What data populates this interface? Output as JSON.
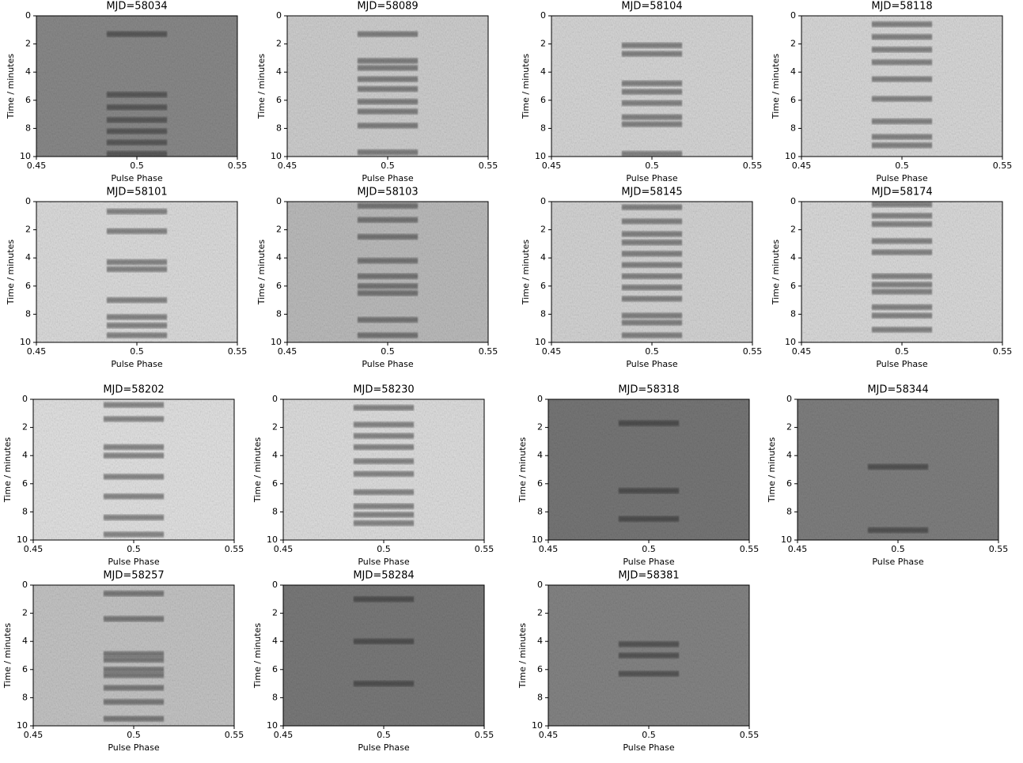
{
  "chart_data": [
    {
      "type": "heatmap",
      "title": "MJD=58034",
      "xlabel": "Pulse Phase",
      "ylabel": "Time / minutes",
      "xlim": [
        0.45,
        0.55
      ],
      "xticks": [
        0.45,
        0.5,
        0.55
      ],
      "ylim": [
        10,
        0
      ],
      "yticks": [
        0,
        2,
        4,
        6,
        8,
        10
      ],
      "background": "#8a8a8a",
      "pulse_window": [
        0.485,
        0.515
      ],
      "pulses": [
        1.3,
        5.6,
        6.5,
        7.4,
        8.2,
        9.0,
        9.8
      ]
    },
    {
      "type": "heatmap",
      "title": "MJD=58089",
      "xlabel": "Pulse Phase",
      "ylabel": "Time / minutes",
      "xlim": [
        0.45,
        0.55
      ],
      "xticks": [
        0.45,
        0.5,
        0.55
      ],
      "ylim": [
        10,
        0
      ],
      "yticks": [
        0,
        2,
        4,
        6,
        8,
        10
      ],
      "background": "#d0d0d0",
      "pulse_window": [
        0.485,
        0.515
      ],
      "pulses": [
        1.3,
        3.2,
        3.7,
        4.5,
        5.2,
        6.1,
        6.8,
        7.8,
        9.7
      ]
    },
    {
      "type": "heatmap",
      "title": "MJD=58104",
      "xlabel": "Pulse Phase",
      "ylabel": "Time / minutes",
      "xlim": [
        0.45,
        0.55
      ],
      "xticks": [
        0.45,
        0.5,
        0.55
      ],
      "ylim": [
        10,
        0
      ],
      "yticks": [
        0,
        2,
        4,
        6,
        8,
        10
      ],
      "background": "#d8d8d8",
      "pulse_window": [
        0.485,
        0.515
      ],
      "pulses": [
        2.1,
        2.7,
        4.8,
        5.4,
        6.2,
        7.2,
        7.7,
        9.8
      ]
    },
    {
      "type": "heatmap",
      "title": "MJD=58118",
      "xlabel": "Pulse Phase",
      "ylabel": "Time / minutes",
      "xlim": [
        0.45,
        0.55
      ],
      "xticks": [
        0.45,
        0.5,
        0.55
      ],
      "ylim": [
        10,
        0
      ],
      "yticks": [
        0,
        2,
        4,
        6,
        8,
        10
      ],
      "background": "#dadada",
      "pulse_window": [
        0.485,
        0.515
      ],
      "pulses": [
        0.6,
        1.5,
        2.4,
        3.3,
        4.5,
        5.9,
        7.5,
        8.6,
        9.2
      ]
    },
    {
      "type": "heatmap",
      "title": "MJD=58101",
      "xlabel": "Pulse Phase",
      "ylabel": "Time / minutes",
      "xlim": [
        0.45,
        0.55
      ],
      "xticks": [
        0.45,
        0.5,
        0.55
      ],
      "ylim": [
        10,
        0
      ],
      "yticks": [
        0,
        2,
        4,
        6,
        8,
        10
      ],
      "background": "#dedede",
      "pulse_window": [
        0.485,
        0.515
      ],
      "pulses": [
        0.7,
        2.1,
        4.3,
        4.8,
        7.0,
        8.2,
        8.8,
        9.5
      ]
    },
    {
      "type": "heatmap",
      "title": "MJD=58103",
      "xlabel": "Pulse Phase",
      "ylabel": "Time / minutes",
      "xlim": [
        0.45,
        0.55
      ],
      "xticks": [
        0.45,
        0.5,
        0.55
      ],
      "ylim": [
        10,
        0
      ],
      "yticks": [
        0,
        2,
        4,
        6,
        8,
        10
      ],
      "background": "#bdbdbd",
      "pulse_window": [
        0.485,
        0.515
      ],
      "pulses": [
        0.3,
        1.3,
        2.5,
        4.2,
        5.3,
        6.0,
        6.5,
        8.4,
        9.5
      ]
    },
    {
      "type": "heatmap",
      "title": "MJD=58145",
      "xlabel": "Pulse Phase",
      "ylabel": "Time / minutes",
      "xlim": [
        0.45,
        0.55
      ],
      "xticks": [
        0.45,
        0.5,
        0.55
      ],
      "ylim": [
        10,
        0
      ],
      "yticks": [
        0,
        2,
        4,
        6,
        8,
        10
      ],
      "background": "#d6d6d6",
      "pulse_window": [
        0.485,
        0.515
      ],
      "pulses": [
        0.4,
        1.4,
        2.3,
        2.9,
        3.7,
        4.5,
        5.3,
        6.1,
        6.9,
        8.1,
        8.6,
        9.5
      ]
    },
    {
      "type": "heatmap",
      "title": "MJD=58174",
      "xlabel": "Pulse Phase",
      "ylabel": "Time / minutes",
      "xlim": [
        0.45,
        0.55
      ],
      "xticks": [
        0.45,
        0.5,
        0.55
      ],
      "ylim": [
        10,
        0
      ],
      "yticks": [
        0,
        2,
        4,
        6,
        8,
        10
      ],
      "background": "#dcdcdc",
      "pulse_window": [
        0.485,
        0.515
      ],
      "pulses": [
        0.2,
        1.0,
        1.6,
        2.8,
        3.6,
        5.3,
        5.9,
        6.4,
        7.5,
        8.1,
        9.1
      ]
    },
    {
      "type": "heatmap",
      "title": "MJD=58202",
      "xlabel": "Pulse Phase",
      "ylabel": "Time / minutes",
      "xlim": [
        0.45,
        0.55
      ],
      "xticks": [
        0.45,
        0.5,
        0.55
      ],
      "ylim": [
        10,
        0
      ],
      "yticks": [
        0,
        2,
        4,
        6,
        8,
        10
      ],
      "background": "#e4e4e4",
      "pulse_window": [
        0.485,
        0.515
      ],
      "pulses": [
        0.4,
        1.4,
        3.4,
        4.0,
        5.5,
        6.9,
        8.4,
        9.6
      ]
    },
    {
      "type": "heatmap",
      "title": "MJD=58230",
      "xlabel": "Pulse Phase",
      "ylabel": "Time / minutes",
      "xlim": [
        0.45,
        0.55
      ],
      "xticks": [
        0.45,
        0.5,
        0.55
      ],
      "ylim": [
        10,
        0
      ],
      "yticks": [
        0,
        2,
        4,
        6,
        8,
        10
      ],
      "background": "#e0e0e0",
      "pulse_window": [
        0.485,
        0.515
      ],
      "pulses": [
        0.6,
        1.8,
        2.6,
        3.4,
        4.4,
        5.3,
        6.6,
        7.6,
        8.2,
        8.8
      ]
    },
    {
      "type": "heatmap",
      "title": "MJD=58318",
      "xlabel": "Pulse Phase",
      "ylabel": "Time / minutes",
      "xlim": [
        0.45,
        0.55
      ],
      "xticks": [
        0.45,
        0.5,
        0.55
      ],
      "ylim": [
        10,
        0
      ],
      "yticks": [
        0,
        2,
        4,
        6,
        8,
        10
      ],
      "background": "#777777",
      "pulse_window": [
        0.485,
        0.515
      ],
      "pulses": [
        1.7,
        6.5,
        8.5
      ]
    },
    {
      "type": "heatmap",
      "title": "MJD=58344",
      "xlabel": "Pulse Phase",
      "ylabel": "Time / minutes",
      "xlim": [
        0.45,
        0.55
      ],
      "xticks": [
        0.45,
        0.5,
        0.55
      ],
      "ylim": [
        10,
        0
      ],
      "yticks": [
        0,
        2,
        4,
        6,
        8,
        10
      ],
      "background": "#808080",
      "pulse_window": [
        0.485,
        0.515
      ],
      "pulses": [
        4.8,
        9.3
      ]
    },
    {
      "type": "heatmap",
      "title": "MJD=58257",
      "xlabel": "Pulse Phase",
      "ylabel": "Time / minutes",
      "xlim": [
        0.45,
        0.55
      ],
      "xticks": [
        0.45,
        0.5,
        0.55
      ],
      "ylim": [
        10,
        0
      ],
      "yticks": [
        0,
        2,
        4,
        6,
        8,
        10
      ],
      "background": "#c6c6c6",
      "pulse_window": [
        0.485,
        0.515
      ],
      "pulses": [
        0.6,
        2.4,
        4.9,
        5.3,
        6.0,
        6.4,
        7.3,
        8.3,
        9.5
      ]
    },
    {
      "type": "heatmap",
      "title": "MJD=58284",
      "xlabel": "Pulse Phase",
      "ylabel": "Time / minutes",
      "xlim": [
        0.45,
        0.55
      ],
      "xticks": [
        0.45,
        0.5,
        0.55
      ],
      "ylim": [
        10,
        0
      ],
      "yticks": [
        0,
        2,
        4,
        6,
        8,
        10
      ],
      "background": "#7a7a7a",
      "pulse_window": [
        0.485,
        0.515
      ],
      "pulses": [
        1.0,
        4.0,
        7.0
      ]
    },
    {
      "type": "heatmap",
      "title": "MJD=58381",
      "xlabel": "Pulse Phase",
      "ylabel": "Time / minutes",
      "xlim": [
        0.45,
        0.55
      ],
      "xticks": [
        0.45,
        0.5,
        0.55
      ],
      "ylim": [
        10,
        0
      ],
      "yticks": [
        0,
        2,
        4,
        6,
        8,
        10
      ],
      "background": "#858585",
      "pulse_window": [
        0.485,
        0.515
      ],
      "pulses": [
        4.2,
        5.0,
        6.3
      ]
    }
  ]
}
